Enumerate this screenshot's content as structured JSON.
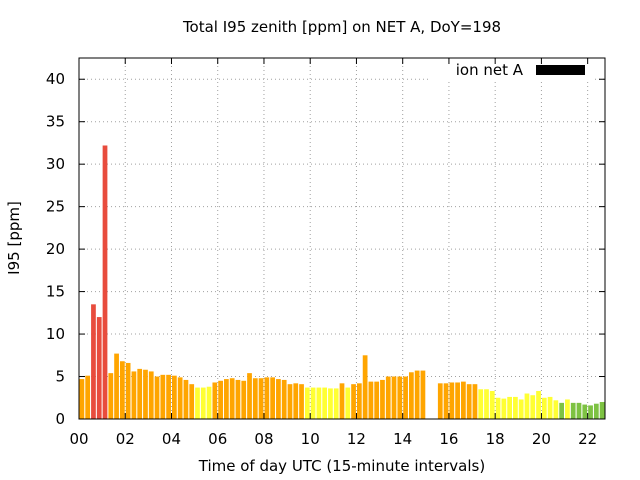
{
  "chart_data": {
    "type": "bar",
    "title": "Total I95 zenith [ppm] on NET A, DoY=198",
    "xlabel": "Time of day UTC (15-minute intervals)",
    "ylabel": "I95 [ppm]",
    "legend": {
      "label": "ion net A",
      "color": "#000000",
      "placement": "top-right"
    },
    "grid": true,
    "xlim": [
      0,
      22.75
    ],
    "ylim": [
      0,
      42.5
    ],
    "xticks": [
      "00",
      "02",
      "04",
      "06",
      "08",
      "10",
      "12",
      "14",
      "16",
      "18",
      "20",
      "22"
    ],
    "yticks": [
      0,
      5,
      10,
      15,
      20,
      25,
      30,
      35,
      40
    ],
    "level_colors": {
      "red": "#e84c3d",
      "orange": "#ffa500",
      "yellow": "#ffff33",
      "green": "#7dc242"
    },
    "bins_per_hour": 4,
    "values": [
      4.7,
      5.1,
      13.5,
      12.0,
      32.2,
      5.4,
      7.7,
      6.8,
      6.6,
      5.6,
      5.9,
      5.8,
      5.6,
      5.0,
      5.2,
      5.2,
      5.1,
      4.9,
      4.6,
      4.1,
      3.7,
      3.7,
      3.8,
      4.3,
      4.5,
      4.7,
      4.8,
      4.6,
      4.5,
      5.4,
      4.8,
      4.8,
      4.9,
      4.9,
      4.7,
      4.6,
      4.1,
      4.2,
      4.1,
      3.7,
      3.7,
      3.7,
      3.7,
      3.6,
      3.6,
      4.2,
      3.7,
      4.1,
      4.2,
      7.5,
      4.4,
      4.4,
      4.6,
      5.0,
      5.0,
      5.0,
      5.0,
      5.5,
      5.7,
      5.7,
      null,
      null,
      4.2,
      4.2,
      4.3,
      4.3,
      4.4,
      4.1,
      4.1,
      3.5,
      3.5,
      3.3,
      2.5,
      2.4,
      2.6,
      2.6,
      2.3,
      3.0,
      2.8,
      3.3,
      2.5,
      2.6,
      2.2,
      1.9,
      2.3,
      1.9,
      1.9,
      1.7,
      1.6,
      1.8,
      2.0
    ],
    "levels": [
      "orange",
      "orange",
      "red",
      "red",
      "red",
      "orange",
      "orange",
      "orange",
      "orange",
      "orange",
      "orange",
      "orange",
      "orange",
      "orange",
      "orange",
      "orange",
      "orange",
      "orange",
      "orange",
      "orange",
      "yellow",
      "yellow",
      "yellow",
      "orange",
      "orange",
      "orange",
      "orange",
      "orange",
      "orange",
      "orange",
      "orange",
      "orange",
      "orange",
      "orange",
      "orange",
      "orange",
      "orange",
      "orange",
      "orange",
      "yellow",
      "yellow",
      "yellow",
      "yellow",
      "yellow",
      "yellow",
      "orange",
      "yellow",
      "orange",
      "orange",
      "orange",
      "orange",
      "orange",
      "orange",
      "orange",
      "orange",
      "orange",
      "orange",
      "orange",
      "orange",
      "orange",
      null,
      null,
      "orange",
      "orange",
      "orange",
      "orange",
      "orange",
      "orange",
      "orange",
      "yellow",
      "yellow",
      "yellow",
      "yellow",
      "yellow",
      "yellow",
      "yellow",
      "yellow",
      "yellow",
      "yellow",
      "yellow",
      "yellow",
      "yellow",
      "yellow",
      "green",
      "yellow",
      "green",
      "green",
      "green",
      "green",
      "green",
      "green"
    ]
  }
}
